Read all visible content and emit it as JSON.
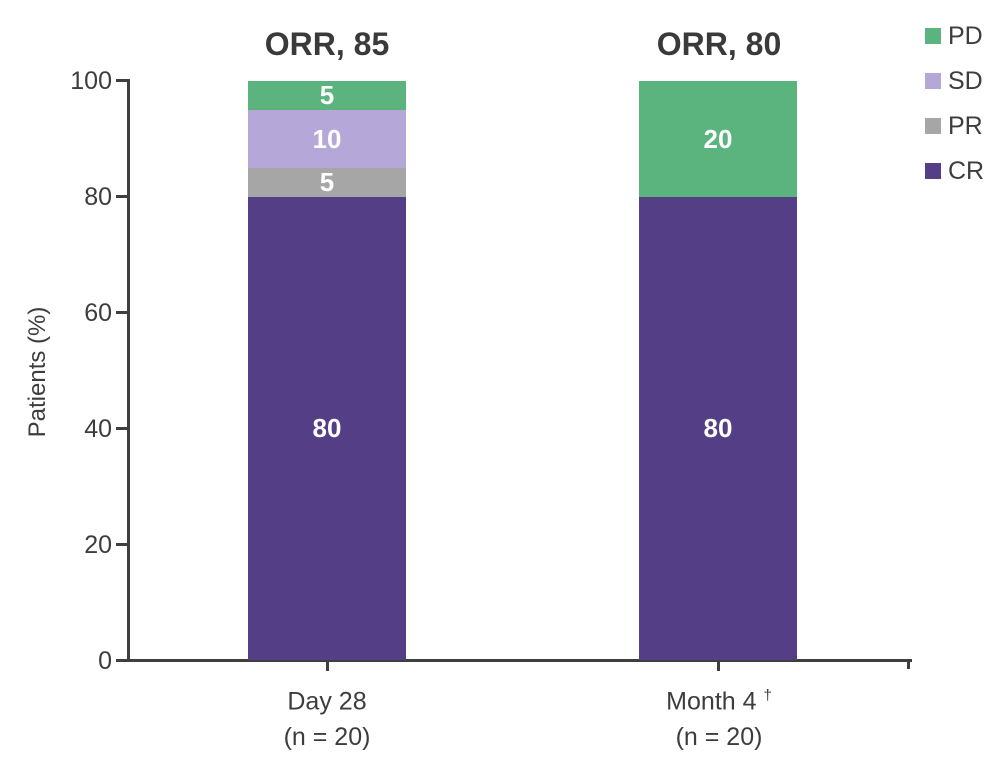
{
  "chart_data": {
    "type": "bar",
    "subtype": "stacked-vertical",
    "title": "",
    "ylabel": "Patients (%)",
    "xlabel": "",
    "ylim": [
      0,
      100
    ],
    "yticks": [
      "0",
      "20",
      "40",
      "60",
      "80",
      "100"
    ],
    "grid": false,
    "legend_position": "top-right",
    "legend": [
      {
        "label": "PD",
        "color": "#5bb47d"
      },
      {
        "label": "SD",
        "color": "#b5a7d8"
      },
      {
        "label": "PR",
        "color": "#a6a6a6"
      },
      {
        "label": "CR",
        "color": "#543e85"
      }
    ],
    "groups": [
      {
        "orr_label": "ORR, 85",
        "x_label_line1": "Day 28",
        "x_label_superscript": "",
        "x_label_line2": "(n = 20)",
        "segments": [
          {
            "series": "CR",
            "value": 80
          },
          {
            "series": "PR",
            "value": 5
          },
          {
            "series": "SD",
            "value": 10
          },
          {
            "series": "PD",
            "value": 5
          }
        ]
      },
      {
        "orr_label": "ORR, 80",
        "x_label_line1": "Month 4",
        "x_label_superscript": "†",
        "x_label_line2": "(n = 20)",
        "segments": [
          {
            "series": "CR",
            "value": 80
          },
          {
            "series": "PD",
            "value": 20
          }
        ]
      }
    ]
  },
  "colors": {
    "axis": "#3f3f3f",
    "text": "#3d3d3d",
    "bar_value_text": "#ffffff",
    "background": "#ffffff"
  }
}
